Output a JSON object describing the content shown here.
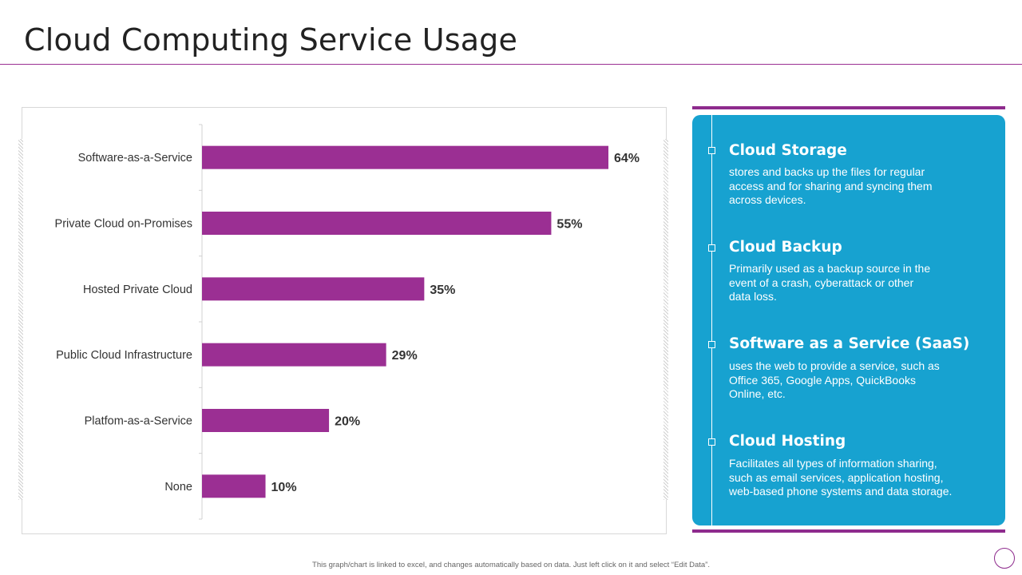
{
  "title": "Cloud Computing Service Usage",
  "chart_data": {
    "type": "bar",
    "orientation": "horizontal",
    "categories": [
      "Software-as-a-Service",
      "Private Cloud on-Promises",
      "Hosted Private Cloud",
      "Public Cloud Infrastructure",
      "Platfom-as-a-Service",
      "None"
    ],
    "values": [
      64,
      55,
      35,
      29,
      20,
      10
    ],
    "data_labels": [
      "64%",
      "55%",
      "35%",
      "29%",
      "20%",
      "10%"
    ],
    "xlim": [
      0,
      70
    ],
    "grid": false,
    "legend": "none",
    "bar_color": "#9b2f93"
  },
  "info": {
    "items": [
      {
        "title": "Cloud Storage",
        "lines": [
          "stores and backs up the files for regular",
          "access and for sharing and syncing them",
          "across devices."
        ]
      },
      {
        "title": "Cloud Backup",
        "lines": [
          "Primarily used as a backup source in the",
          "event of a crash, cyberattack or other",
          "data loss."
        ]
      },
      {
        "title": "Software as a Service (SaaS)",
        "lines": [
          "uses the web to provide  a service, such as",
          "Office 365, Google Apps, QuickBooks",
          "Online, etc."
        ]
      },
      {
        "title": "Cloud Hosting",
        "lines": [
          "Facilitates all types of information sharing,",
          "such as email services, application hosting,",
          "web-based phone systems and data storage."
        ]
      }
    ]
  },
  "footnote": "This graph/chart is linked to excel, and changes automatically based on data. Just left click on it and select “Edit Data”.",
  "colors": {
    "accent": "#9b2f93",
    "panel": "#17a2d0"
  }
}
